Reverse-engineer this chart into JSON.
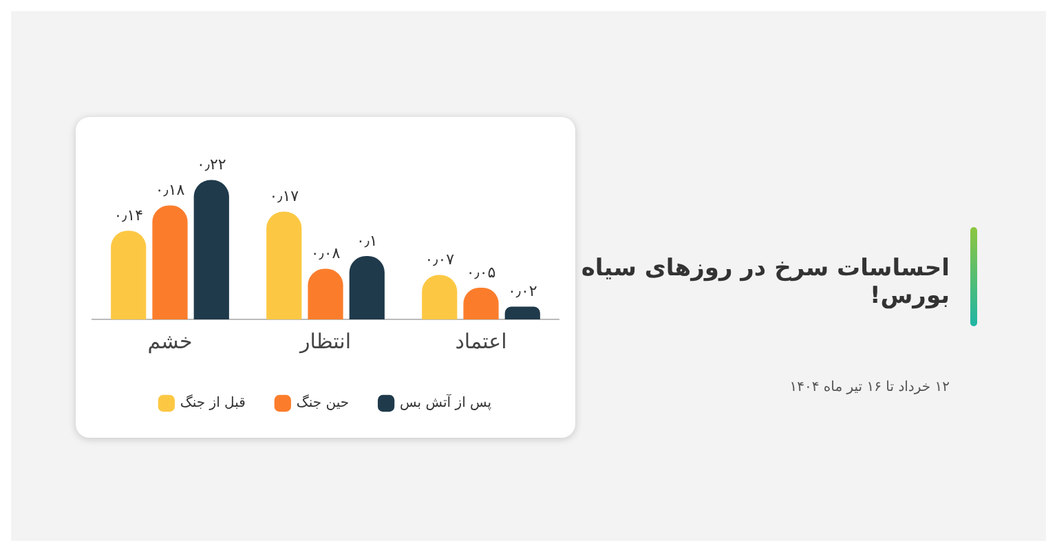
{
  "chart_data": {
    "type": "bar",
    "title": "احساسات سرخ در روزهای سیاه بورس!",
    "subtitle": "۱۲ خرداد تا ۱۶ تیر ماه ۱۴۰۴",
    "categories": [
      "خشم",
      "انتظار",
      "اعتماد"
    ],
    "series": [
      {
        "name": "قبل از جنگ",
        "color": "#fcc844",
        "values": [
          0.14,
          0.17,
          0.07
        ],
        "value_labels": [
          "۰٫۱۴",
          "۰٫۱۷",
          "۰٫۰۷"
        ]
      },
      {
        "name": "حین جنگ",
        "color": "#fb7d2c",
        "values": [
          0.18,
          0.08,
          0.05
        ],
        "value_labels": [
          "۰٫۱۸",
          "۰٫۰۸",
          "۰٫۰۵"
        ]
      },
      {
        "name": "پس از آتش بس",
        "color": "#1f3a4b",
        "values": [
          0.22,
          0.1,
          0.02
        ],
        "value_labels": [
          "۰٫۲۲",
          "۰٫۱",
          "۰٫۰۲"
        ]
      }
    ],
    "legend": "bottom",
    "grid": false
  }
}
